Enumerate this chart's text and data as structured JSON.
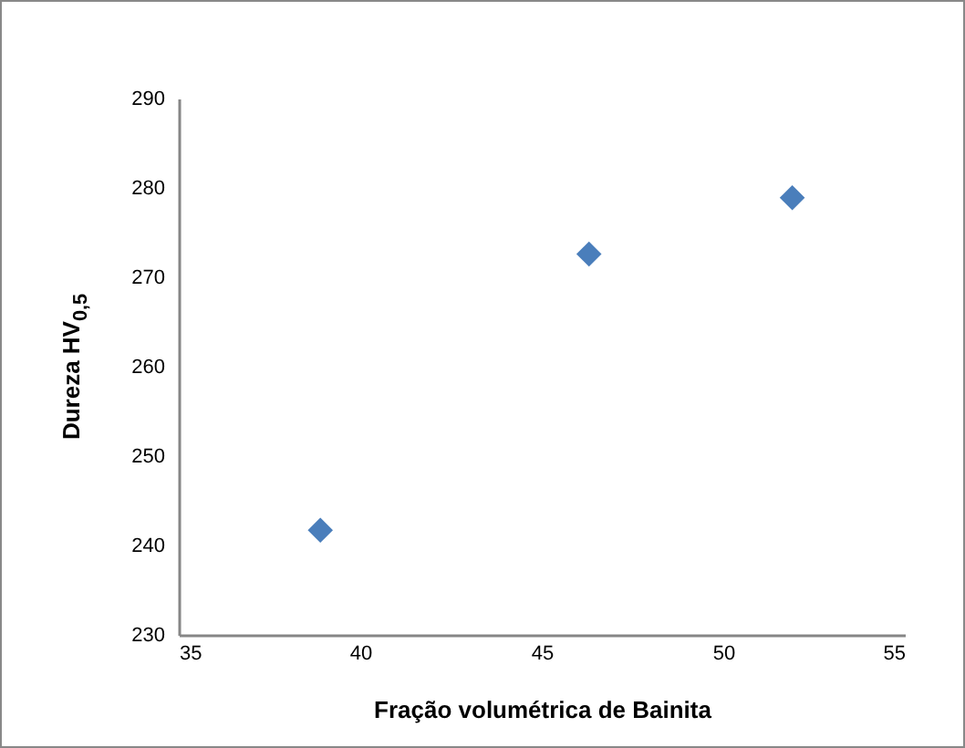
{
  "chart_data": {
    "type": "scatter",
    "xlabel": "Fração volumétrica de Bainita",
    "ylabel": "Dureza  HV$_{0,5}$",
    "x": [
      38.9,
      46.3,
      51.9
    ],
    "series": [
      {
        "color": "#4a7ebb",
        "values": [
          241.7,
          272.6,
          278.9
        ]
      }
    ],
    "xlim": [
      35,
      55
    ],
    "xticks": [
      35,
      40,
      45,
      50,
      55
    ],
    "ylim": [
      230,
      290
    ],
    "yticks": [
      230,
      240,
      250,
      260,
      270,
      280,
      290
    ],
    "grid": false,
    "legend": false,
    "marker": "diamond"
  }
}
